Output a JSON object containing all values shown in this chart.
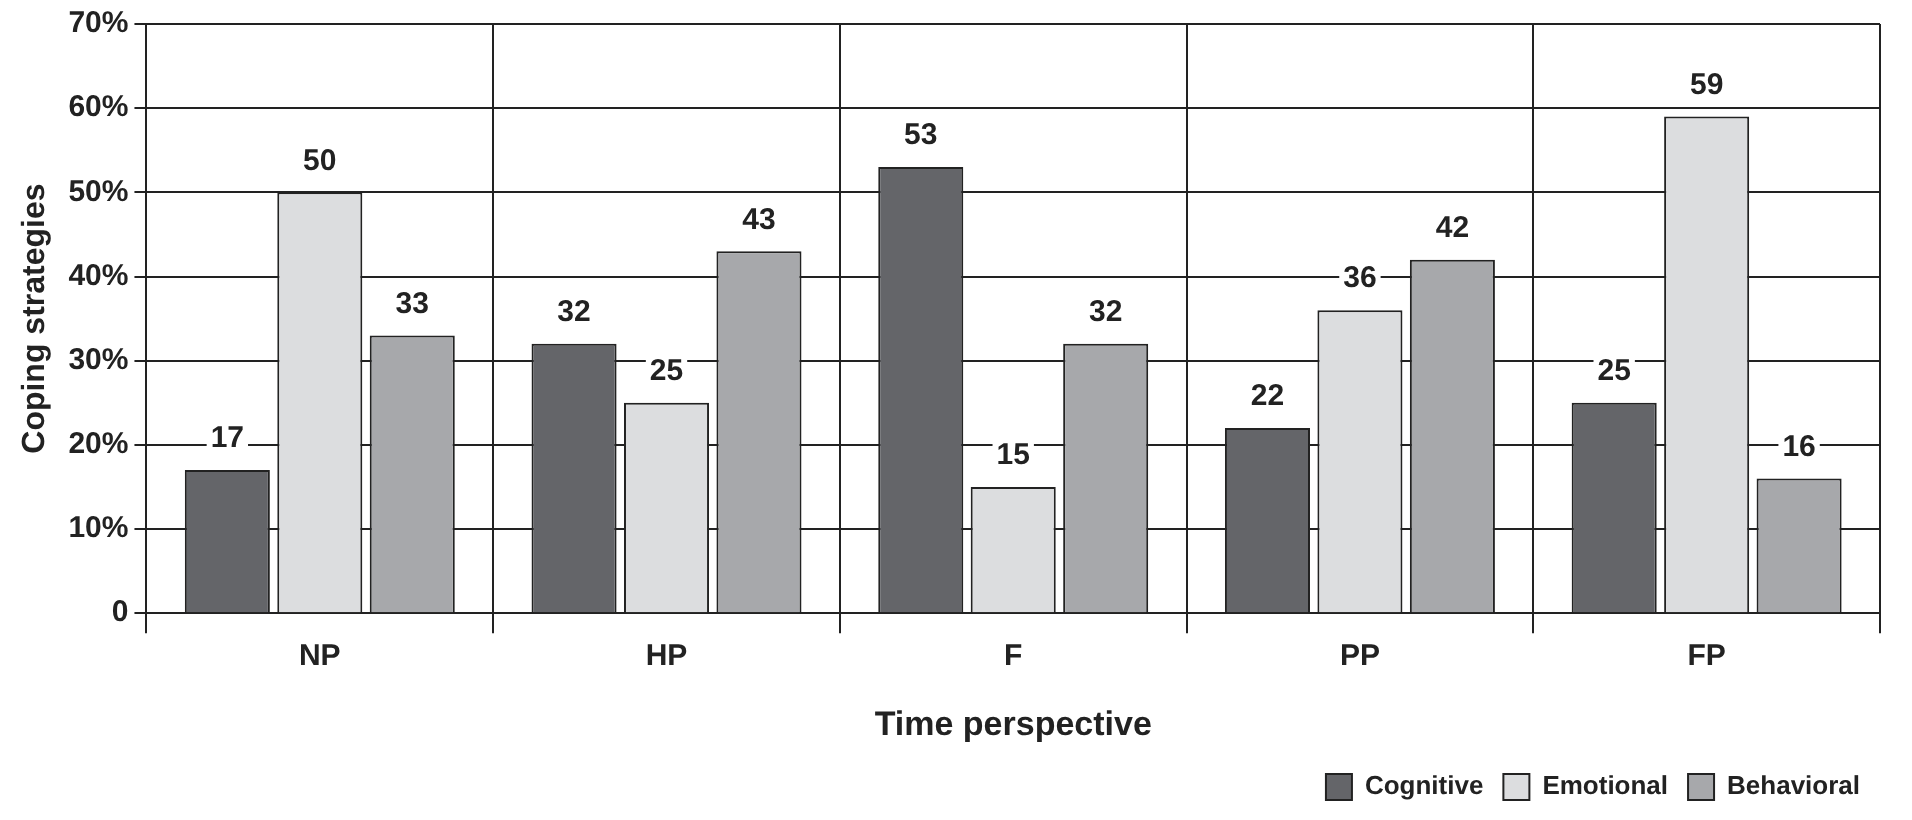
{
  "chart_data": {
    "type": "bar",
    "xlabel": "Time perspective",
    "ylabel": "Coping strategies",
    "categories": [
      "NP",
      "HP",
      "F",
      "PP",
      "FP"
    ],
    "series": [
      {
        "name": "Cognitive",
        "color": "#646569",
        "values": [
          17,
          32,
          53,
          22,
          25
        ]
      },
      {
        "name": "Emotional",
        "color": "#dcdddf",
        "values": [
          50,
          25,
          15,
          36,
          59
        ]
      },
      {
        "name": "Behavioral",
        "color": "#a7a8ab",
        "values": [
          33,
          43,
          32,
          42,
          16
        ]
      }
    ],
    "ylim": [
      0,
      70
    ],
    "yticks": [
      0,
      {
        "value": 10,
        "label": "10%"
      },
      {
        "value": 20,
        "label": "20%"
      },
      {
        "value": 30,
        "label": "30%"
      },
      {
        "value": 40,
        "label": "40%"
      },
      {
        "value": 50,
        "label": "50%"
      },
      {
        "value": 60,
        "label": "60%"
      },
      {
        "value": 70,
        "label": "70%"
      }
    ],
    "grid": true,
    "legend": "bottom right",
    "data_labels": true
  }
}
